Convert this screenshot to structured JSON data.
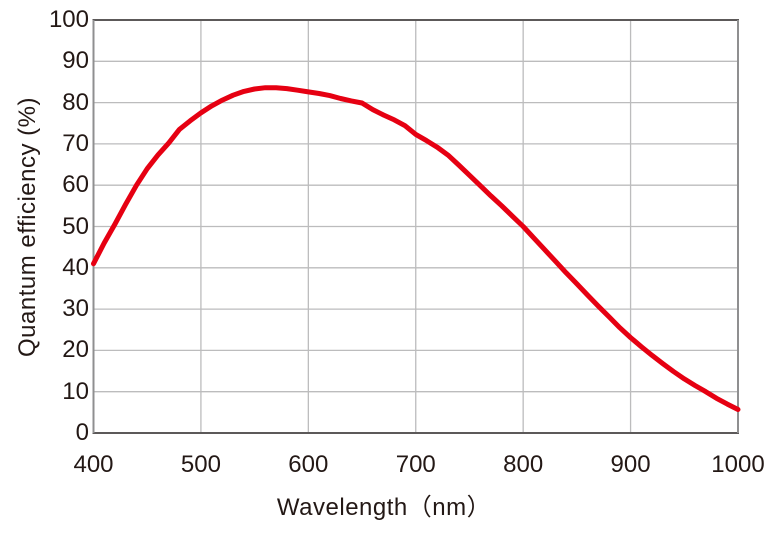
{
  "colors": {
    "background": "#ffffff",
    "line": "#e60012",
    "text": "#231815",
    "grid": "#bcbcbd",
    "frame_dark": "#5c5959",
    "frame_light": "#8f8f90"
  },
  "chart_data": {
    "type": "line",
    "title": "",
    "xlabel": "Wavelength（nm）",
    "ylabel": "Quantum efficiency (%)",
    "xlim": [
      400,
      1000
    ],
    "ylim": [
      0,
      100
    ],
    "x_ticks": [
      400,
      500,
      600,
      700,
      800,
      900,
      1000
    ],
    "y_ticks": [
      0,
      10,
      20,
      30,
      40,
      50,
      60,
      70,
      80,
      90,
      100
    ],
    "grid": true,
    "legend": false,
    "series": [
      {
        "name": "Quantum efficiency",
        "color": "#e60012",
        "points": [
          [
            400,
            41.0
          ],
          [
            410,
            46.0
          ],
          [
            420,
            50.6
          ],
          [
            430,
            55.4
          ],
          [
            440,
            60.0
          ],
          [
            450,
            64.0
          ],
          [
            460,
            67.3
          ],
          [
            470,
            70.2
          ],
          [
            480,
            73.5
          ],
          [
            490,
            75.6
          ],
          [
            500,
            77.5
          ],
          [
            510,
            79.2
          ],
          [
            520,
            80.6
          ],
          [
            530,
            81.8
          ],
          [
            540,
            82.7
          ],
          [
            550,
            83.3
          ],
          [
            560,
            83.6
          ],
          [
            570,
            83.6
          ],
          [
            580,
            83.4
          ],
          [
            590,
            83.0
          ],
          [
            600,
            82.6
          ],
          [
            610,
            82.2
          ],
          [
            620,
            81.7
          ],
          [
            630,
            81.0
          ],
          [
            640,
            80.4
          ],
          [
            650,
            79.9
          ],
          [
            660,
            78.3
          ],
          [
            670,
            77.0
          ],
          [
            680,
            75.8
          ],
          [
            690,
            74.4
          ],
          [
            700,
            72.3
          ],
          [
            710,
            70.8
          ],
          [
            720,
            69.2
          ],
          [
            730,
            67.3
          ],
          [
            740,
            64.9
          ],
          [
            750,
            62.4
          ],
          [
            760,
            59.9
          ],
          [
            770,
            57.4
          ],
          [
            780,
            55.0
          ],
          [
            790,
            52.5
          ],
          [
            800,
            50.0
          ],
          [
            810,
            47.2
          ],
          [
            820,
            44.4
          ],
          [
            830,
            41.6
          ],
          [
            840,
            38.8
          ],
          [
            850,
            36.1
          ],
          [
            860,
            33.4
          ],
          [
            870,
            30.7
          ],
          [
            880,
            28.1
          ],
          [
            890,
            25.5
          ],
          [
            900,
            23.1
          ],
          [
            910,
            20.9
          ],
          [
            920,
            18.8
          ],
          [
            930,
            16.8
          ],
          [
            940,
            14.9
          ],
          [
            950,
            13.1
          ],
          [
            960,
            11.5
          ],
          [
            970,
            10.0
          ],
          [
            980,
            8.4
          ],
          [
            990,
            7.0
          ],
          [
            1000,
            5.7
          ]
        ]
      }
    ]
  }
}
